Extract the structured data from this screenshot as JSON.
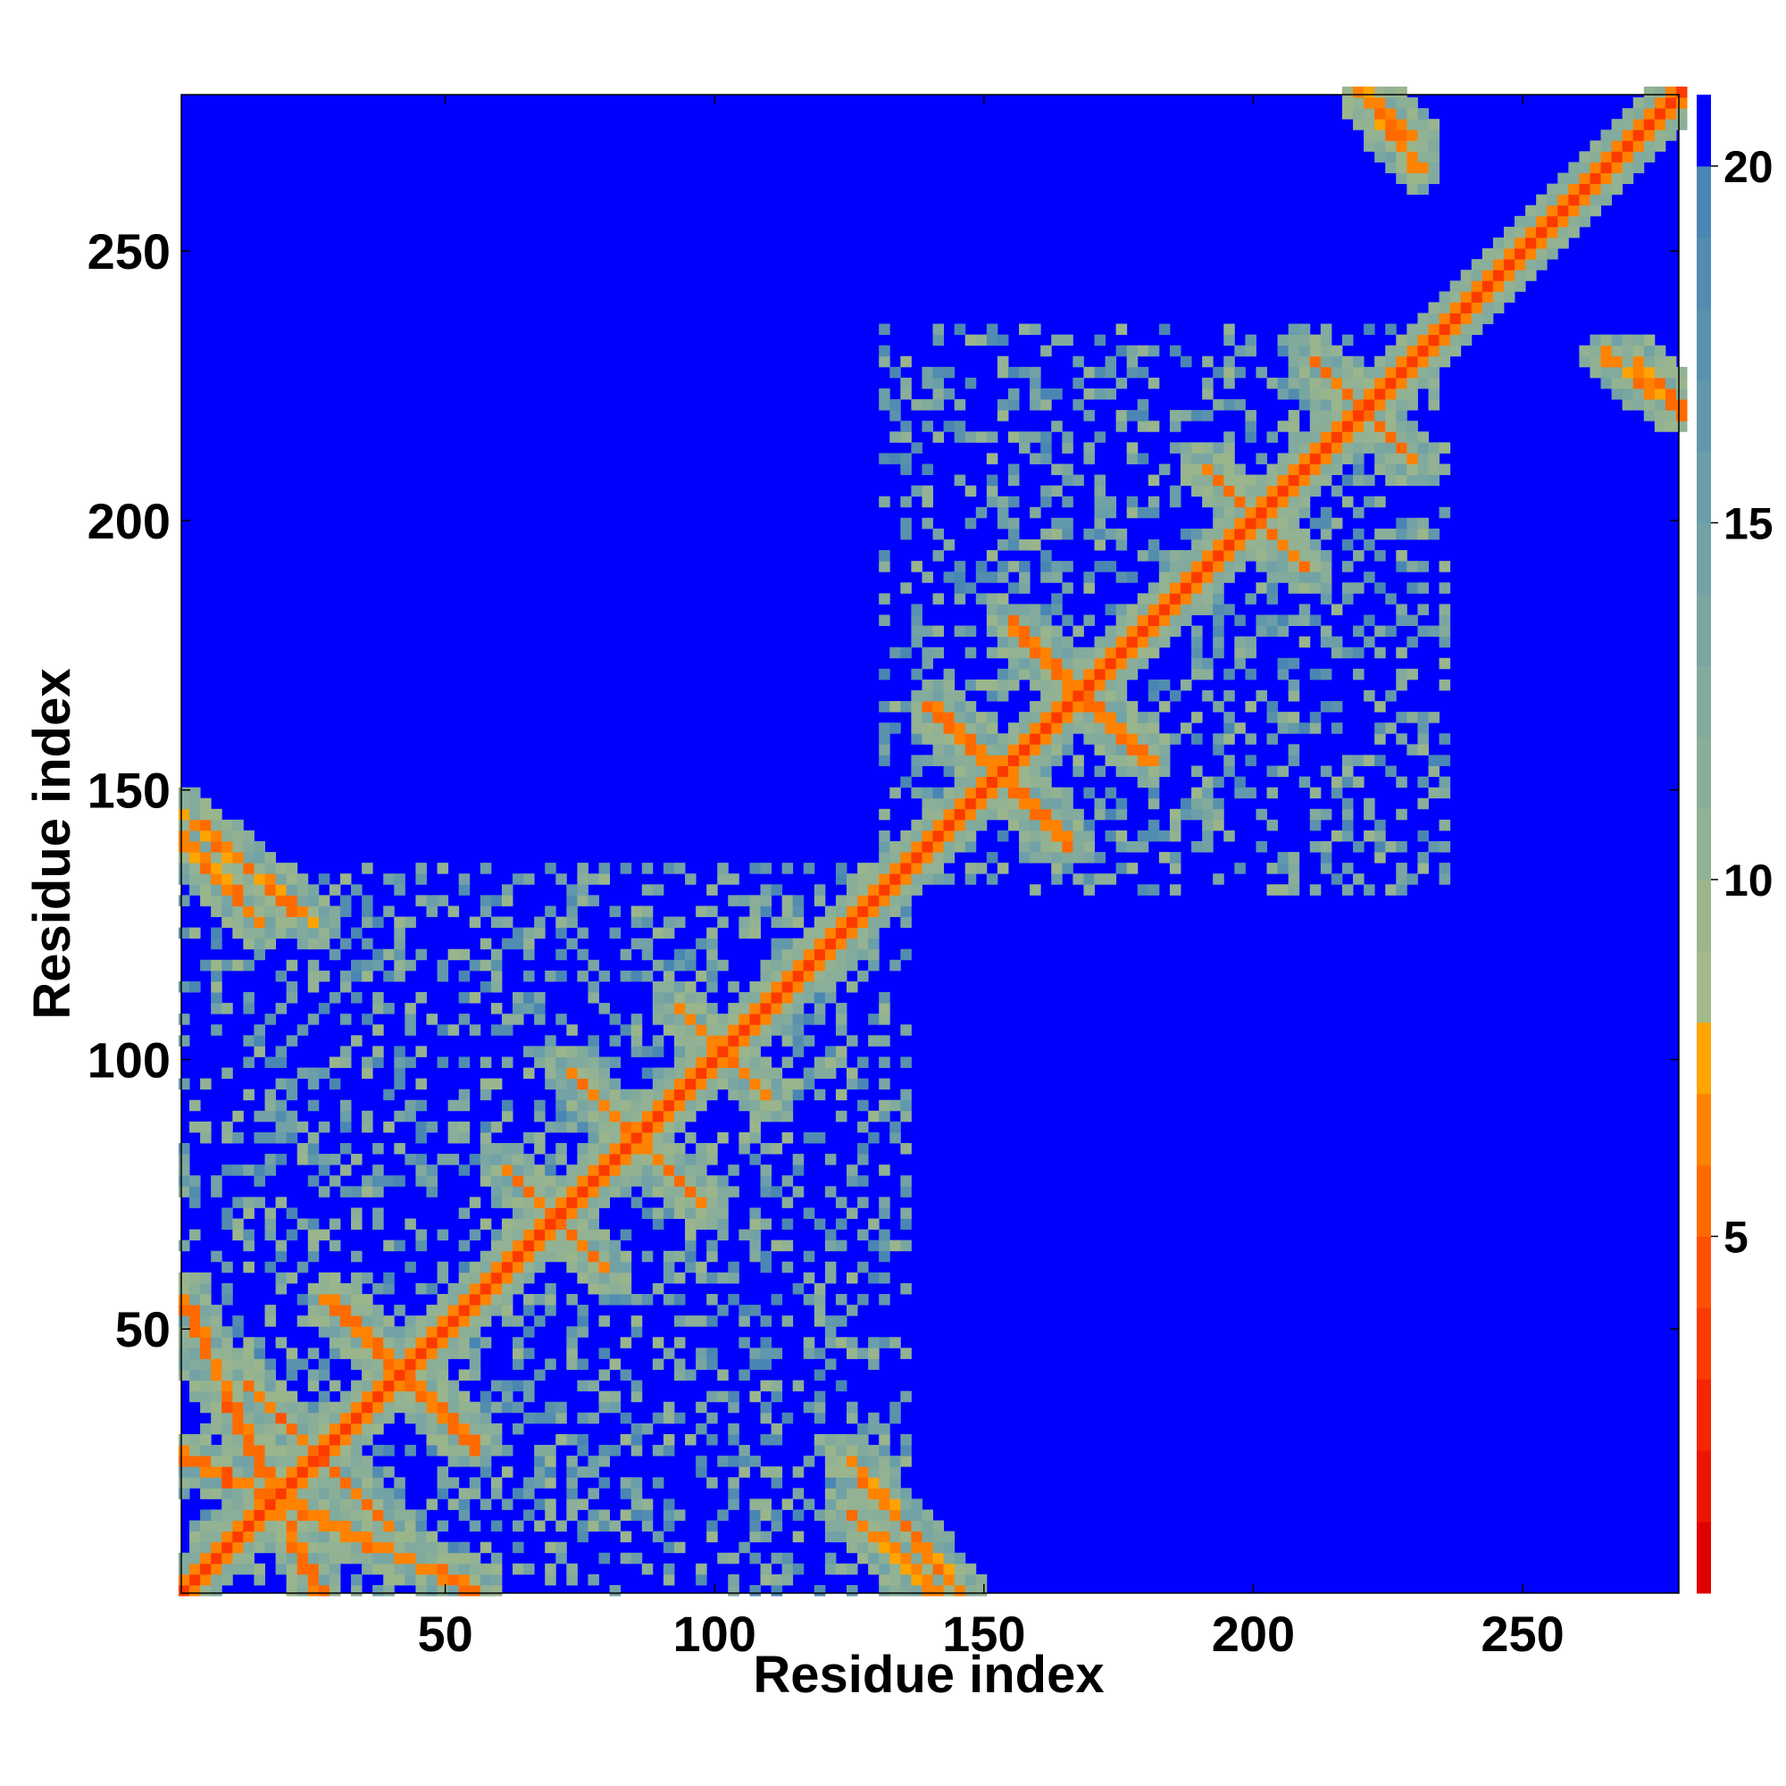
{
  "chart_data": {
    "type": "heatmap",
    "title": "",
    "xlabel": "Residue index",
    "ylabel": "Residue index",
    "xlim": [
      1,
      279
    ],
    "ylim": [
      1,
      279
    ],
    "xticks": [
      50,
      100,
      150,
      200,
      250
    ],
    "yticks": [
      50,
      100,
      150,
      200,
      250
    ],
    "grid": false,
    "colorbar": {
      "placement": "right",
      "range": [
        0,
        21
      ],
      "ticks": [
        5,
        10,
        15,
        20
      ],
      "levels": [
        {
          "max": 1,
          "color": "#e00000"
        },
        {
          "max": 2,
          "color": "#ee1500"
        },
        {
          "max": 3,
          "color": "#f62400"
        },
        {
          "max": 4,
          "color": "#fb3a00"
        },
        {
          "max": 5,
          "color": "#ff5000"
        },
        {
          "max": 6,
          "color": "#ff6a00"
        },
        {
          "max": 7,
          "color": "#ff8200"
        },
        {
          "max": 8,
          "color": "#ffa400"
        },
        {
          "max": 9,
          "color": "#a3b98a"
        },
        {
          "max": 10,
          "color": "#9ab58c"
        },
        {
          "max": 11,
          "color": "#92b293"
        },
        {
          "max": 12,
          "color": "#8aae98"
        },
        {
          "max": 13,
          "color": "#82aa9d"
        },
        {
          "max": 14,
          "color": "#7aa6a2"
        },
        {
          "max": 15,
          "color": "#72a2a6"
        },
        {
          "max": 16,
          "color": "#6a9ea9"
        },
        {
          "max": 17,
          "color": "#6298ab"
        },
        {
          "max": 18,
          "color": "#5a92ad"
        },
        {
          "max": 19,
          "color": "#528cb0"
        },
        {
          "max": 20,
          "color": "#4a86b3"
        },
        {
          "max": 21,
          "color": "#0000ff"
        }
      ]
    },
    "background_color": "#0000ff",
    "description_features": {
      "diagonal": {
        "from": 1,
        "to": 279,
        "distance": 3.8
      },
      "diagonal_bands": [
        {
          "x": [
            1,
            55
          ],
          "y": [
            26,
            1
          ],
          "distance": 4.8
        },
        {
          "x": [
            12,
            40
          ],
          "y": [
            40,
            12
          ],
          "distance": 4.8
        },
        {
          "x": [
            1,
            25
          ],
          "y": [
            145,
            125
          ],
          "distance": 5.5
        },
        {
          "x": [
            28,
            55
          ],
          "y": [
            55,
            28
          ],
          "distance": 5.0
        },
        {
          "x": [
            60,
            80
          ],
          "y": [
            80,
            60
          ],
          "distance": 5.0
        },
        {
          "x": [
            72,
            95
          ],
          "y": [
            98,
            75
          ],
          "distance": 5.0
        },
        {
          "x": [
            92,
            110
          ],
          "y": [
            110,
            92
          ],
          "distance": 5.0
        },
        {
          "x": [
            125,
            140
          ],
          "y": [
            15,
            1
          ],
          "distance": 5.5
        },
        {
          "x": [
            140,
            165
          ],
          "y": [
            165,
            140
          ],
          "distance": 5.0
        },
        {
          "x": [
            155,
            180
          ],
          "y": [
            180,
            155
          ],
          "distance": 5.0
        },
        {
          "x": [
            190,
            210
          ],
          "y": [
            210,
            190
          ],
          "distance": 5.0
        },
        {
          "x": [
            210,
            230
          ],
          "y": [
            230,
            210
          ],
          "distance": 5.0
        },
        {
          "x": [
            220,
            230
          ],
          "y": [
            279,
            270
          ],
          "distance": 5.5
        },
        {
          "x": [
            265,
            279
          ],
          "y": [
            230,
            220
          ],
          "distance": 5.5
        }
      ],
      "domains": [
        {
          "range": [
            1,
            135
          ],
          "distance": 12
        },
        {
          "range": [
            130,
            235
          ],
          "distance": 12
        }
      ]
    }
  }
}
